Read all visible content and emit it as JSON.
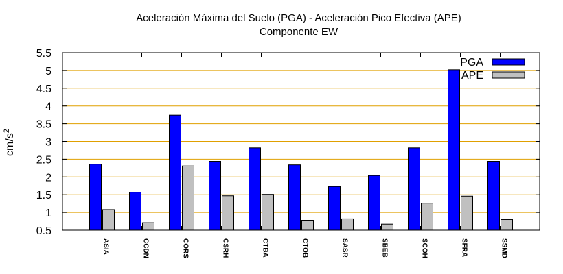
{
  "chart_data": {
    "type": "bar",
    "title": "Aceleración Máxima del Suelo (PGA) -  Aceleración Pico Efectiva (APE)",
    "subtitle": "Componente EW",
    "xlabel": "",
    "ylabel": "cm/s",
    "ylabel_sup": "2",
    "ylim": [
      0.5,
      5.5
    ],
    "yticks": [
      "0.5",
      "1",
      "1.5",
      "2",
      "2.5",
      "3",
      "3.5",
      "4",
      "4.5",
      "5",
      "5.5"
    ],
    "categories": [
      "ASIA",
      "CCDN",
      "CORS",
      "CSRH",
      "CTBA",
      "CTOB",
      "SASR",
      "SBEB",
      "SCOH",
      "SFRA",
      "SSMD"
    ],
    "series": [
      {
        "name": "PGA",
        "color": "#0000ff",
        "values": [
          2.36,
          1.57,
          3.74,
          2.44,
          2.82,
          2.34,
          1.73,
          2.04,
          2.82,
          5.02,
          2.44
        ]
      },
      {
        "name": "APE",
        "color": "#c0c0c0",
        "values": [
          1.08,
          0.71,
          2.31,
          1.47,
          1.51,
          0.78,
          0.82,
          0.67,
          1.26,
          1.46,
          0.8
        ]
      }
    ],
    "grid": "horizontal",
    "grid_color": "#e0a000",
    "legend_position": "top-right"
  }
}
